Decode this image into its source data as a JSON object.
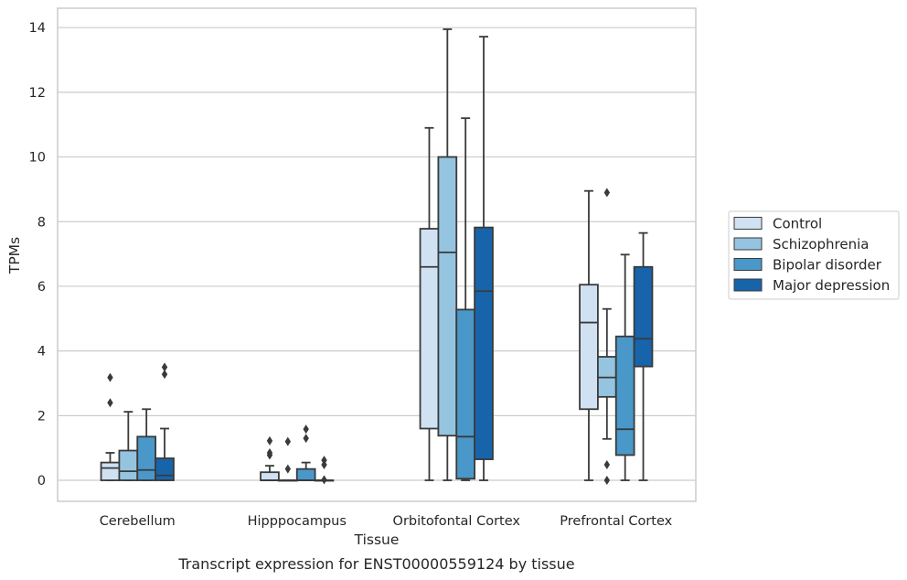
{
  "chart_data": {
    "type": "boxplot",
    "title": "",
    "caption": "Transcript expression for ENST00000559124 by tissue",
    "xlabel": "Tissue",
    "ylabel": "TPMs",
    "ylim": [
      -0.65,
      14.6
    ],
    "yticks": [
      0,
      2,
      4,
      6,
      8,
      10,
      12,
      14
    ],
    "ytick_labels": [
      "0",
      "2",
      "4",
      "6",
      "8",
      "10",
      "12",
      "14"
    ],
    "grid": "horizontal",
    "legend_position": "right",
    "categories": [
      "Cerebellum",
      "Hipppocampus",
      "Orbitofontal Cortex",
      "Prefrontal Cortex"
    ],
    "series": [
      {
        "name": "Control",
        "color": "#d0e1f2",
        "boxes": [
          {
            "q1": 0.0,
            "median": 0.38,
            "q3": 0.55,
            "whisker_low": 0.0,
            "whisker_high": 0.85,
            "outliers": [
              2.4,
              3.18
            ]
          },
          {
            "q1": 0.0,
            "median": 0.0,
            "q3": 0.25,
            "whisker_low": 0.0,
            "whisker_high": 0.45,
            "outliers": [
              0.78,
              0.85,
              1.22
            ]
          },
          {
            "q1": 1.6,
            "median": 6.6,
            "q3": 7.78,
            "whisker_low": 0.0,
            "whisker_high": 10.9,
            "outliers": []
          },
          {
            "q1": 2.2,
            "median": 4.88,
            "q3": 6.05,
            "whisker_low": 0.0,
            "whisker_high": 8.95,
            "outliers": []
          }
        ]
      },
      {
        "name": "Schizophrenia",
        "color": "#94c4df",
        "boxes": [
          {
            "q1": 0.0,
            "median": 0.28,
            "q3": 0.92,
            "whisker_low": 0.0,
            "whisker_high": 2.12,
            "outliers": []
          },
          {
            "q1": 0.0,
            "median": 0.0,
            "q3": 0.0,
            "whisker_low": 0.0,
            "whisker_high": 0.0,
            "outliers": [
              0.35,
              1.2
            ]
          },
          {
            "q1": 1.38,
            "median": 7.05,
            "q3": 10.0,
            "whisker_low": 0.0,
            "whisker_high": 13.95,
            "outliers": []
          },
          {
            "q1": 2.58,
            "median": 3.18,
            "q3": 3.82,
            "whisker_low": 1.28,
            "whisker_high": 5.3,
            "outliers": [
              0.0,
              0.48,
              8.9
            ]
          }
        ]
      },
      {
        "name": "Bipolar disorder",
        "color": "#4a98c9",
        "boxes": [
          {
            "q1": 0.0,
            "median": 0.32,
            "q3": 1.35,
            "whisker_low": 0.0,
            "whisker_high": 2.2,
            "outliers": []
          },
          {
            "q1": 0.0,
            "median": 0.0,
            "q3": 0.35,
            "whisker_low": 0.0,
            "whisker_high": 0.55,
            "outliers": [
              1.3,
              1.58
            ]
          },
          {
            "q1": 0.05,
            "median": 1.35,
            "q3": 5.28,
            "whisker_low": 0.0,
            "whisker_high": 11.2,
            "outliers": []
          },
          {
            "q1": 0.78,
            "median": 1.58,
            "q3": 4.45,
            "whisker_low": 0.0,
            "whisker_high": 6.98,
            "outliers": []
          }
        ]
      },
      {
        "name": "Major depression",
        "color": "#1764ab",
        "boxes": [
          {
            "q1": 0.0,
            "median": 0.15,
            "q3": 0.68,
            "whisker_low": 0.0,
            "whisker_high": 1.6,
            "outliers": [
              3.28,
              3.5
            ]
          },
          {
            "q1": 0.0,
            "median": 0.0,
            "q3": 0.0,
            "whisker_low": 0.0,
            "whisker_high": 0.0,
            "outliers": [
              0.02,
              0.48,
              0.62
            ]
          },
          {
            "q1": 0.65,
            "median": 5.85,
            "q3": 7.82,
            "whisker_low": 0.0,
            "whisker_high": 13.72,
            "outliers": []
          },
          {
            "q1": 3.52,
            "median": 4.38,
            "q3": 6.6,
            "whisker_low": 0.0,
            "whisker_high": 7.65,
            "outliers": []
          }
        ]
      }
    ]
  }
}
